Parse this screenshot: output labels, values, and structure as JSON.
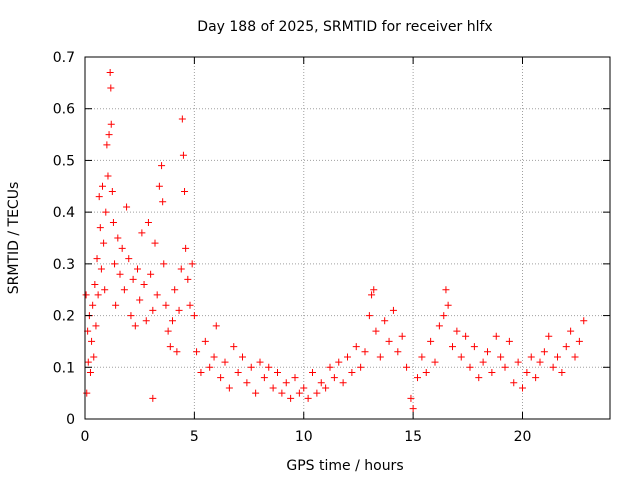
{
  "chart_data": {
    "type": "scatter",
    "title": "Day 188 of 2025, SRMTID for receiver hlfx",
    "xlabel": "GPS time / hours",
    "ylabel": "SRMTID / TECUs",
    "xlim": [
      0,
      24
    ],
    "ylim": [
      0,
      0.7
    ],
    "xticks": [
      "0",
      "5",
      "10",
      "15",
      "20"
    ],
    "yticks": [
      "0",
      "0.1",
      "0.2",
      "0.3",
      "0.4",
      "0.5",
      "0.6",
      "0.7"
    ],
    "grid": true,
    "marker": "+",
    "color": "#ff0000",
    "series": [
      {
        "name": "SRMTID",
        "points": [
          [
            0.05,
            0.24
          ],
          [
            0.08,
            0.05
          ],
          [
            0.12,
            0.17
          ],
          [
            0.15,
            0.11
          ],
          [
            0.2,
            0.2
          ],
          [
            0.25,
            0.09
          ],
          [
            0.3,
            0.15
          ],
          [
            0.35,
            0.22
          ],
          [
            0.4,
            0.12
          ],
          [
            0.45,
            0.26
          ],
          [
            0.5,
            0.18
          ],
          [
            0.55,
            0.31
          ],
          [
            0.6,
            0.24
          ],
          [
            0.65,
            0.43
          ],
          [
            0.7,
            0.37
          ],
          [
            0.75,
            0.29
          ],
          [
            0.8,
            0.45
          ],
          [
            0.85,
            0.34
          ],
          [
            0.9,
            0.25
          ],
          [
            0.95,
            0.4
          ],
          [
            1.0,
            0.53
          ],
          [
            1.05,
            0.47
          ],
          [
            1.1,
            0.55
          ],
          [
            1.15,
            0.67
          ],
          [
            1.18,
            0.64
          ],
          [
            1.2,
            0.57
          ],
          [
            1.25,
            0.44
          ],
          [
            1.3,
            0.38
          ],
          [
            1.35,
            0.3
          ],
          [
            1.4,
            0.22
          ],
          [
            1.5,
            0.35
          ],
          [
            1.6,
            0.28
          ],
          [
            1.7,
            0.33
          ],
          [
            1.8,
            0.25
          ],
          [
            1.9,
            0.41
          ],
          [
            2.0,
            0.31
          ],
          [
            2.1,
            0.2
          ],
          [
            2.2,
            0.27
          ],
          [
            2.3,
            0.18
          ],
          [
            2.4,
            0.29
          ],
          [
            2.5,
            0.23
          ],
          [
            2.6,
            0.36
          ],
          [
            2.7,
            0.26
          ],
          [
            2.8,
            0.19
          ],
          [
            2.9,
            0.38
          ],
          [
            3.0,
            0.28
          ],
          [
            3.1,
            0.21
          ],
          [
            3.2,
            0.34
          ],
          [
            3.3,
            0.24
          ],
          [
            3.4,
            0.45
          ],
          [
            3.5,
            0.49
          ],
          [
            3.55,
            0.42
          ],
          [
            3.6,
            0.3
          ],
          [
            3.7,
            0.22
          ],
          [
            3.8,
            0.17
          ],
          [
            3.9,
            0.14
          ],
          [
            4.0,
            0.19
          ],
          [
            4.1,
            0.25
          ],
          [
            4.2,
            0.13
          ],
          [
            4.3,
            0.21
          ],
          [
            4.4,
            0.29
          ],
          [
            4.45,
            0.58
          ],
          [
            4.5,
            0.51
          ],
          [
            4.55,
            0.44
          ],
          [
            4.6,
            0.33
          ],
          [
            4.7,
            0.27
          ],
          [
            4.8,
            0.22
          ],
          [
            4.9,
            0.3
          ],
          [
            5.0,
            0.2
          ],
          [
            3.1,
            0.04
          ],
          [
            5.1,
            0.13
          ],
          [
            5.3,
            0.09
          ],
          [
            5.5,
            0.15
          ],
          [
            5.7,
            0.1
          ],
          [
            5.9,
            0.12
          ],
          [
            6.0,
            0.18
          ],
          [
            6.2,
            0.08
          ],
          [
            6.4,
            0.11
          ],
          [
            6.6,
            0.06
          ],
          [
            6.8,
            0.14
          ],
          [
            7.0,
            0.09
          ],
          [
            7.2,
            0.12
          ],
          [
            7.4,
            0.07
          ],
          [
            7.6,
            0.1
          ],
          [
            7.8,
            0.05
          ],
          [
            8.0,
            0.11
          ],
          [
            8.2,
            0.08
          ],
          [
            8.4,
            0.1
          ],
          [
            8.6,
            0.06
          ],
          [
            8.8,
            0.09
          ],
          [
            9.0,
            0.05
          ],
          [
            9.2,
            0.07
          ],
          [
            9.4,
            0.04
          ],
          [
            9.6,
            0.08
          ],
          [
            9.8,
            0.05
          ],
          [
            10.0,
            0.06
          ],
          [
            10.2,
            0.04
          ],
          [
            10.4,
            0.09
          ],
          [
            10.6,
            0.05
          ],
          [
            10.8,
            0.07
          ],
          [
            11.0,
            0.06
          ],
          [
            11.2,
            0.1
          ],
          [
            11.4,
            0.08
          ],
          [
            11.6,
            0.11
          ],
          [
            11.8,
            0.07
          ],
          [
            12.0,
            0.12
          ],
          [
            12.2,
            0.09
          ],
          [
            12.4,
            0.14
          ],
          [
            12.6,
            0.1
          ],
          [
            12.8,
            0.13
          ],
          [
            13.0,
            0.2
          ],
          [
            13.1,
            0.24
          ],
          [
            13.2,
            0.25
          ],
          [
            13.3,
            0.17
          ],
          [
            13.5,
            0.12
          ],
          [
            13.7,
            0.19
          ],
          [
            13.9,
            0.15
          ],
          [
            14.1,
            0.21
          ],
          [
            14.3,
            0.13
          ],
          [
            14.5,
            0.16
          ],
          [
            14.7,
            0.1
          ],
          [
            14.9,
            0.04
          ],
          [
            15.0,
            0.02
          ],
          [
            15.2,
            0.08
          ],
          [
            15.4,
            0.12
          ],
          [
            15.6,
            0.09
          ],
          [
            15.8,
            0.15
          ],
          [
            16.0,
            0.11
          ],
          [
            16.2,
            0.18
          ],
          [
            16.4,
            0.2
          ],
          [
            16.5,
            0.25
          ],
          [
            16.6,
            0.22
          ],
          [
            16.8,
            0.14
          ],
          [
            17.0,
            0.17
          ],
          [
            17.2,
            0.12
          ],
          [
            17.4,
            0.16
          ],
          [
            17.6,
            0.1
          ],
          [
            17.8,
            0.14
          ],
          [
            18.0,
            0.08
          ],
          [
            18.2,
            0.11
          ],
          [
            18.4,
            0.13
          ],
          [
            18.6,
            0.09
          ],
          [
            18.8,
            0.16
          ],
          [
            19.0,
            0.12
          ],
          [
            19.2,
            0.1
          ],
          [
            19.4,
            0.15
          ],
          [
            19.6,
            0.07
          ],
          [
            19.8,
            0.11
          ],
          [
            20.0,
            0.06
          ],
          [
            20.2,
            0.09
          ],
          [
            20.4,
            0.12
          ],
          [
            20.6,
            0.08
          ],
          [
            20.8,
            0.11
          ],
          [
            21.0,
            0.13
          ],
          [
            21.2,
            0.16
          ],
          [
            21.4,
            0.1
          ],
          [
            21.6,
            0.12
          ],
          [
            21.8,
            0.09
          ],
          [
            22.0,
            0.14
          ],
          [
            22.2,
            0.17
          ],
          [
            22.4,
            0.12
          ],
          [
            22.6,
            0.15
          ],
          [
            22.8,
            0.19
          ]
        ]
      }
    ]
  }
}
